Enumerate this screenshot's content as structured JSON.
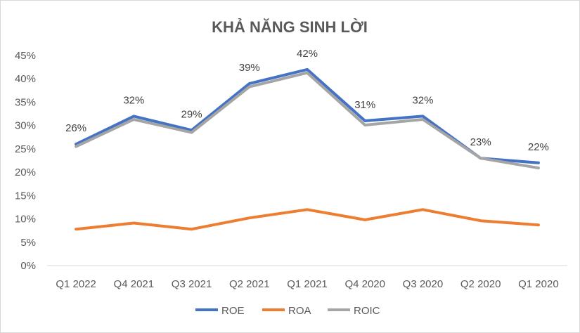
{
  "chart_data": {
    "type": "line",
    "title": "KHẢ NĂNG SINH LỜI",
    "categories": [
      "Q1 2022",
      "Q4 2021",
      "Q3 2021",
      "Q2 2021",
      "Q1 2021",
      "Q4 2020",
      "Q3 2020",
      "Q2 2020",
      "Q1 2020"
    ],
    "ylim": [
      0,
      45
    ],
    "yticks": [
      "0%",
      "5%",
      "10%",
      "15%",
      "20%",
      "25%",
      "30%",
      "35%",
      "40%",
      "45%"
    ],
    "grid": false,
    "legend_position": "bottom",
    "series": [
      {
        "name": "ROE",
        "color": "#4472c4",
        "values": [
          26,
          32,
          29,
          39,
          42,
          31,
          32,
          23,
          22
        ],
        "labels": [
          "26%",
          "32%",
          "29%",
          "39%",
          "42%",
          "31%",
          "32%",
          "23%",
          "22%"
        ]
      },
      {
        "name": "ROA",
        "color": "#ed7d31",
        "values": [
          7.8,
          9.1,
          7.8,
          10.2,
          12.0,
          9.8,
          12.0,
          9.6,
          8.7
        ]
      },
      {
        "name": "ROIC",
        "color": "#a5a5a5",
        "values": [
          25.5,
          31.3,
          28.5,
          38.3,
          41.3,
          30.1,
          31.3,
          23.0,
          20.9
        ]
      }
    ]
  }
}
